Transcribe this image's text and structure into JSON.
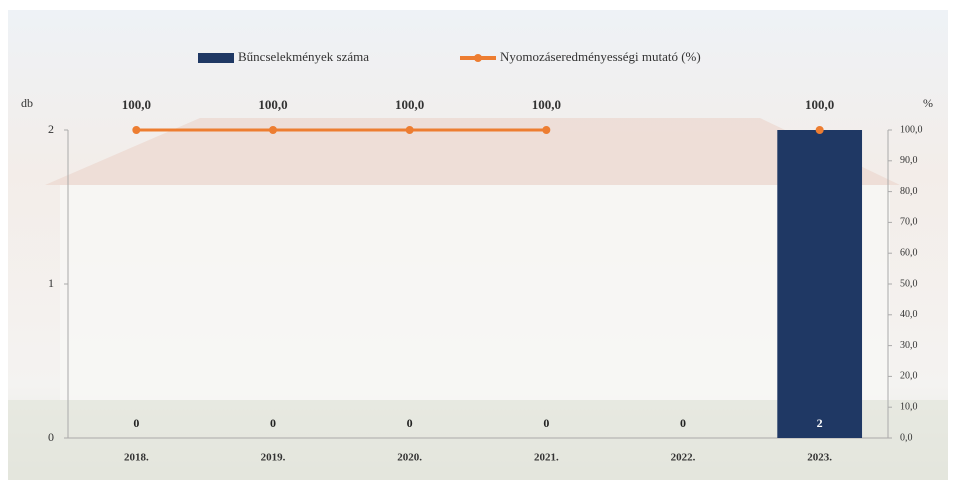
{
  "chart_data": {
    "type": "bar",
    "categories": [
      "2018.",
      "2019.",
      "2020.",
      "2021.",
      "2022.",
      "2023."
    ],
    "series": [
      {
        "name": "Bűncselekmények száma",
        "type": "bar",
        "color": "#1f3864",
        "values": [
          0,
          0,
          0,
          0,
          0,
          2
        ]
      },
      {
        "name": "Nyomozáseredményességi mutató (%)",
        "type": "line",
        "axis": "y2",
        "color": "#ed7d31",
        "values": [
          100,
          100,
          100,
          100,
          null,
          100
        ],
        "value_labels": [
          "100,0",
          "100,0",
          "100,0",
          "100,0",
          null,
          "100,0"
        ]
      }
    ],
    "ylabel": "db",
    "y2label": "%",
    "ylim": [
      0,
      2
    ],
    "yticks": [
      0,
      1,
      2
    ],
    "y2lim": [
      0,
      100
    ],
    "y2ticks": [
      {
        "value": 0,
        "label": "0,0"
      },
      {
        "value": 10,
        "label": "10,0"
      },
      {
        "value": 20,
        "label": "20,0"
      },
      {
        "value": 30,
        "label": "30,0"
      },
      {
        "value": 40,
        "label": "40,0"
      },
      {
        "value": 50,
        "label": "50,0"
      },
      {
        "value": 60,
        "label": "60,0"
      },
      {
        "value": 70,
        "label": "70,0"
      },
      {
        "value": 80,
        "label": "80,0"
      },
      {
        "value": 90,
        "label": "90,0"
      },
      {
        "value": 100,
        "label": "100,0"
      }
    ],
    "legend": "top"
  }
}
